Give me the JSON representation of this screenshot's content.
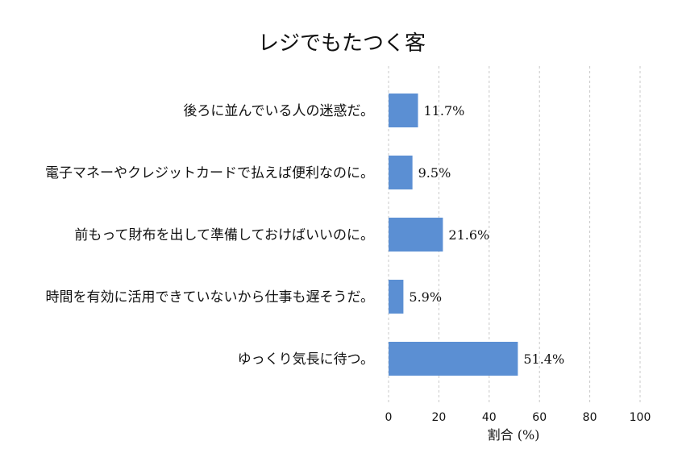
{
  "chart_data": {
    "type": "bar",
    "orientation": "horizontal",
    "title": "レジでもたつく客",
    "xlabel": "割合 (%)",
    "ylabel": "",
    "xlim": [
      0,
      100
    ],
    "xticks": [
      0,
      20,
      40,
      60,
      80,
      100
    ],
    "grid": "x-dashed",
    "categories": [
      "後ろに並んでいる人の迷惑だ。",
      "電子マネーやクレジットカードで払えば便利なのに。",
      "前もって財布を出して準備しておけばいいのに。",
      "時間を有効に活用できていないから仕事も遅そうだ。",
      "ゆっくり気長に待つ。"
    ],
    "values": [
      11.7,
      9.5,
      21.6,
      5.9,
      51.4
    ],
    "value_labels": [
      "11.7%",
      "9.5%",
      "21.6%",
      "5.9%",
      "51.4%"
    ],
    "bar_color": "#5b8fd3"
  }
}
